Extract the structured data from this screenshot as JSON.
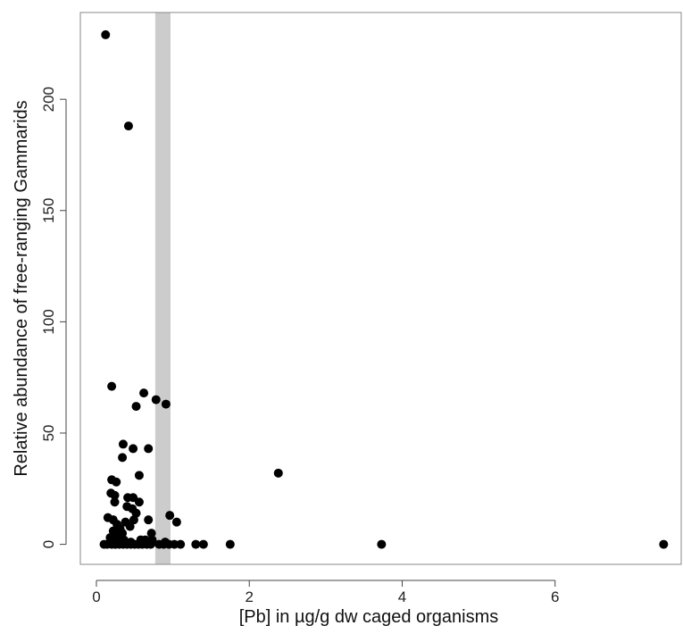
{
  "chart_data": {
    "type": "scatter",
    "xlabel": "[Pb] in µg/g dw caged organisms",
    "ylabel": "Relative abundance of free-ranging Gammarids",
    "xlim": [
      -0.21,
      7.65
    ],
    "ylim": [
      -9,
      239
    ],
    "xticks": [
      0,
      2,
      4,
      6
    ],
    "yticks": [
      0,
      50,
      100,
      150,
      200
    ],
    "grid": false,
    "band": {
      "x0": 0.77,
      "x1": 0.97,
      "color": "#cccccc"
    },
    "point_color": "#000000",
    "points": [
      {
        "x": 0.12,
        "y": 229
      },
      {
        "x": 0.42,
        "y": 188
      },
      {
        "x": 0.2,
        "y": 71
      },
      {
        "x": 0.62,
        "y": 68
      },
      {
        "x": 0.78,
        "y": 65
      },
      {
        "x": 0.91,
        "y": 63
      },
      {
        "x": 0.52,
        "y": 62
      },
      {
        "x": 0.35,
        "y": 45
      },
      {
        "x": 0.68,
        "y": 43
      },
      {
        "x": 0.48,
        "y": 43
      },
      {
        "x": 0.34,
        "y": 39
      },
      {
        "x": 2.38,
        "y": 32
      },
      {
        "x": 0.56,
        "y": 31
      },
      {
        "x": 0.2,
        "y": 29
      },
      {
        "x": 0.26,
        "y": 28
      },
      {
        "x": 0.19,
        "y": 23
      },
      {
        "x": 0.24,
        "y": 22
      },
      {
        "x": 0.41,
        "y": 21
      },
      {
        "x": 0.48,
        "y": 21
      },
      {
        "x": 0.24,
        "y": 19
      },
      {
        "x": 0.56,
        "y": 19
      },
      {
        "x": 0.4,
        "y": 17
      },
      {
        "x": 0.47,
        "y": 16
      },
      {
        "x": 0.52,
        "y": 14
      },
      {
        "x": 0.96,
        "y": 13
      },
      {
        "x": 0.15,
        "y": 12
      },
      {
        "x": 0.22,
        "y": 11
      },
      {
        "x": 0.49,
        "y": 11
      },
      {
        "x": 0.68,
        "y": 11
      },
      {
        "x": 1.05,
        "y": 10
      },
      {
        "x": 0.38,
        "y": 10
      },
      {
        "x": 0.27,
        "y": 9
      },
      {
        "x": 0.44,
        "y": 8
      },
      {
        "x": 0.31,
        "y": 7
      },
      {
        "x": 0.22,
        "y": 6
      },
      {
        "x": 0.34,
        "y": 5
      },
      {
        "x": 0.72,
        "y": 5
      },
      {
        "x": 0.25,
        "y": 4
      },
      {
        "x": 0.18,
        "y": 3
      },
      {
        "x": 0.3,
        "y": 3
      },
      {
        "x": 0.22,
        "y": 2
      },
      {
        "x": 0.36,
        "y": 2
      },
      {
        "x": 0.58,
        "y": 2
      },
      {
        "x": 0.64,
        "y": 2
      },
      {
        "x": 0.73,
        "y": 2
      },
      {
        "x": 0.45,
        "y": 1
      },
      {
        "x": 0.9,
        "y": 1
      },
      {
        "x": 0.1,
        "y": 0
      },
      {
        "x": 0.14,
        "y": 0
      },
      {
        "x": 0.2,
        "y": 0
      },
      {
        "x": 0.25,
        "y": 0
      },
      {
        "x": 0.3,
        "y": 0
      },
      {
        "x": 0.35,
        "y": 0
      },
      {
        "x": 0.4,
        "y": 0
      },
      {
        "x": 0.45,
        "y": 0
      },
      {
        "x": 0.5,
        "y": 0
      },
      {
        "x": 0.55,
        "y": 0
      },
      {
        "x": 0.6,
        "y": 0
      },
      {
        "x": 0.66,
        "y": 0
      },
      {
        "x": 0.71,
        "y": 0
      },
      {
        "x": 0.82,
        "y": 0
      },
      {
        "x": 0.88,
        "y": 0
      },
      {
        "x": 0.95,
        "y": 0
      },
      {
        "x": 1.02,
        "y": 0
      },
      {
        "x": 1.1,
        "y": 0
      },
      {
        "x": 1.3,
        "y": 0
      },
      {
        "x": 1.4,
        "y": 0
      },
      {
        "x": 1.75,
        "y": 0
      },
      {
        "x": 3.73,
        "y": 0
      },
      {
        "x": 7.42,
        "y": 0
      }
    ]
  }
}
